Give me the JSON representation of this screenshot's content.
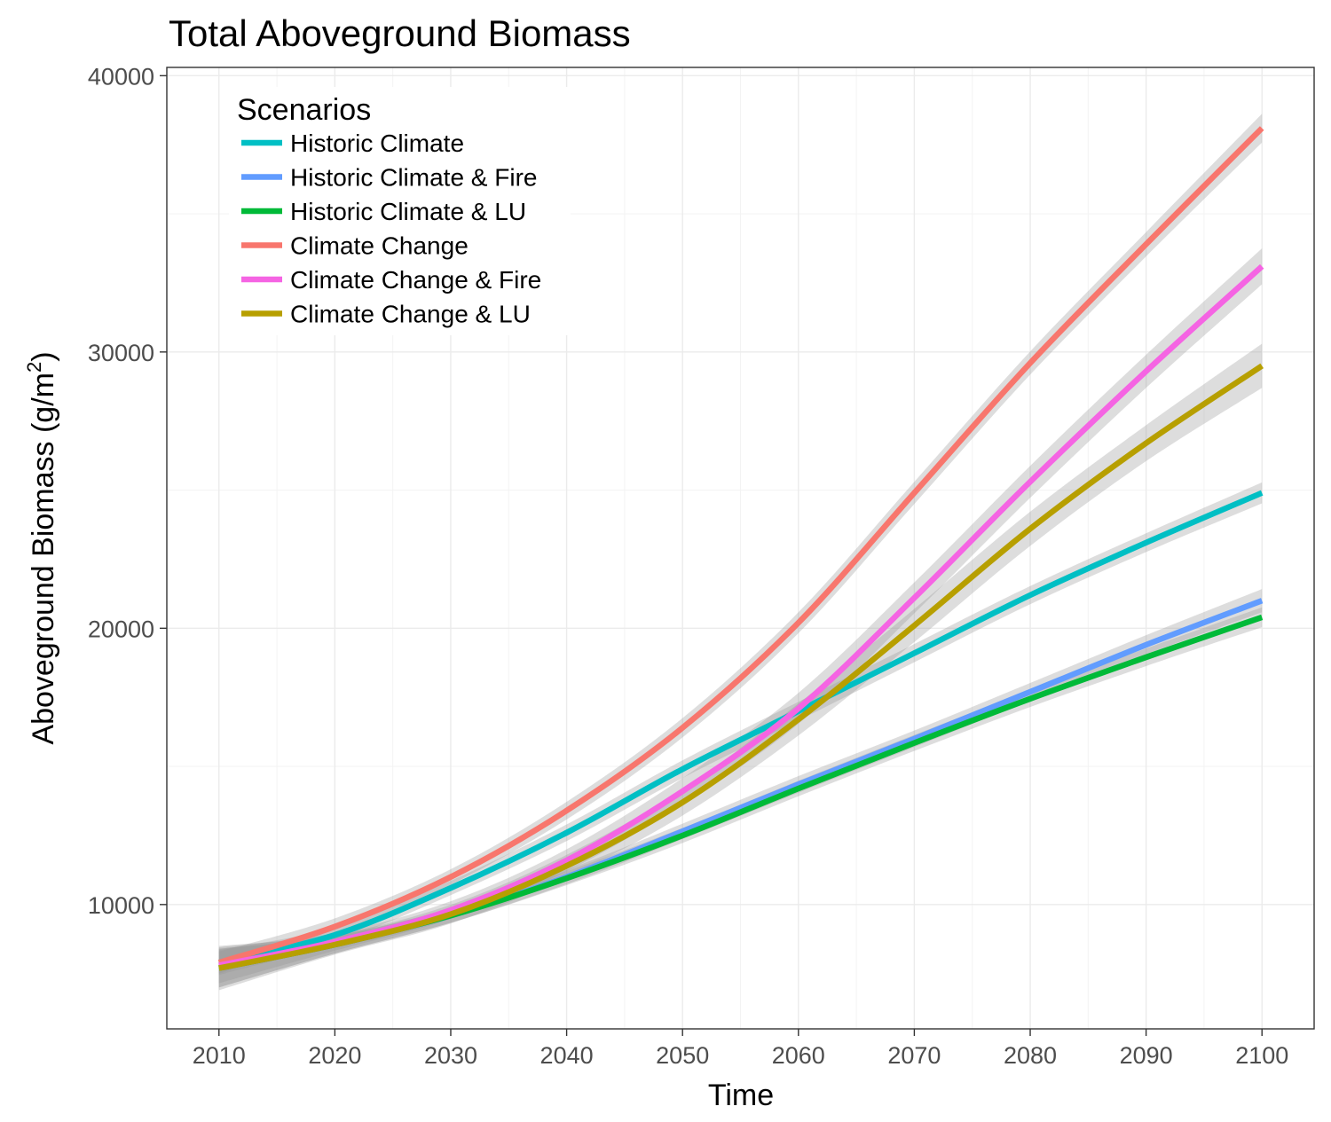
{
  "chart_data": {
    "type": "line",
    "title": "Total Aboveground Biomass",
    "xlabel": "Time",
    "ylabel": "Aboveground Biomass (g/m",
    "ylabel_sup": "2",
    "ylabel_close": ")",
    "xlim": [
      2005.5,
      2104.5
    ],
    "ylim": [
      5500,
      40300
    ],
    "x_ticks": [
      2010,
      2020,
      2030,
      2040,
      2050,
      2060,
      2070,
      2080,
      2090,
      2100
    ],
    "y_ticks": [
      10000,
      20000,
      30000,
      40000
    ],
    "grid": true,
    "legend": {
      "title": "Scenarios",
      "position": "top-left"
    },
    "x": [
      2010,
      2020,
      2030,
      2040,
      2050,
      2060,
      2070,
      2080,
      2090,
      2100
    ],
    "series": [
      {
        "name": "Historic Climate",
        "color": "#00BFC4",
        "values": [
          7900,
          8900,
          10600,
          12600,
          14900,
          17000,
          19100,
          21200,
          23100,
          24900
        ],
        "ci": [
          450,
          280,
          260,
          300,
          320,
          340,
          330,
          330,
          340,
          380
        ]
      },
      {
        "name": "Historic Climate & Fire",
        "color": "#619CFF",
        "values": [
          7700,
          8550,
          9600,
          11000,
          12650,
          14350,
          16000,
          17700,
          19400,
          21000
        ],
        "ci": [
          700,
          320,
          260,
          260,
          280,
          300,
          300,
          320,
          350,
          420
        ]
      },
      {
        "name": "Historic Climate & LU",
        "color": "#00BA38",
        "values": [
          7700,
          8550,
          9600,
          10950,
          12500,
          14200,
          15850,
          17450,
          18950,
          20400
        ],
        "ci": [
          700,
          320,
          260,
          250,
          270,
          280,
          290,
          300,
          320,
          360
        ]
      },
      {
        "name": "Climate Change",
        "color": "#F8766D",
        "values": [
          7900,
          9200,
          11000,
          13400,
          16400,
          20200,
          24900,
          29600,
          33900,
          38100
        ],
        "ci": [
          400,
          300,
          280,
          320,
          350,
          380,
          400,
          420,
          440,
          520
        ]
      },
      {
        "name": "Climate Change & Fire",
        "color": "#F564E3",
        "values": [
          7800,
          8650,
          9800,
          11600,
          14100,
          17100,
          21100,
          25300,
          29300,
          33100
        ],
        "ci": [
          650,
          320,
          320,
          400,
          480,
          560,
          560,
          580,
          600,
          650
        ]
      },
      {
        "name": "Climate Change & LU",
        "color": "#B79F00",
        "values": [
          7700,
          8550,
          9650,
          11400,
          13700,
          16700,
          20100,
          23600,
          26700,
          29500
        ],
        "ci": [
          800,
          360,
          340,
          400,
          480,
          580,
          600,
          620,
          650,
          800
        ]
      }
    ]
  }
}
